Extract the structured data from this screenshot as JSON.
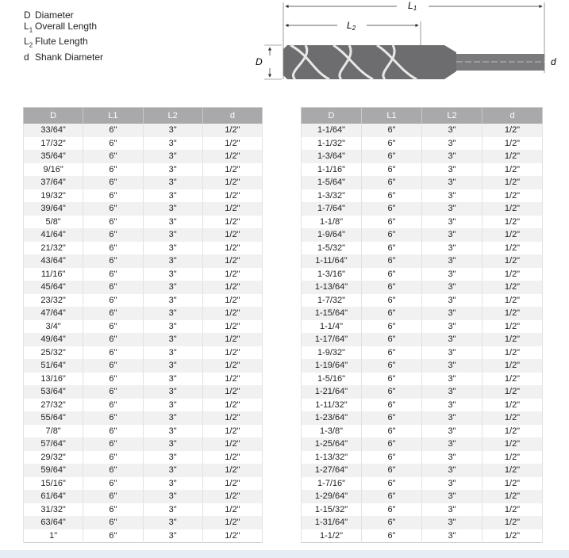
{
  "legend": [
    {
      "symbol": "D",
      "sub": "",
      "label": "Diameter"
    },
    {
      "symbol": "L",
      "sub": "1",
      "label": "Overall Length"
    },
    {
      "symbol": "L",
      "sub": "2",
      "label": "Flute Length"
    },
    {
      "symbol": "d",
      "sub": "",
      "label": "Shank Diameter"
    }
  ],
  "diagram": {
    "overall": {
      "symbol": "L",
      "sub": "1"
    },
    "flute": {
      "symbol": "L",
      "sub": "2"
    },
    "diameter": "D",
    "shank": "d"
  },
  "tables": [
    {
      "headers": [
        "D",
        "L1",
        "L2",
        "d"
      ],
      "rows": [
        [
          "33/64\"",
          "6\"",
          "3\"",
          "1/2\""
        ],
        [
          "17/32\"",
          "6\"",
          "3\"",
          "1/2\""
        ],
        [
          "35/64\"",
          "6\"",
          "3\"",
          "1/2\""
        ],
        [
          "9/16\"",
          "6\"",
          "3\"",
          "1/2\""
        ],
        [
          "37/64\"",
          "6\"",
          "3\"",
          "1/2\""
        ],
        [
          "19/32\"",
          "6\"",
          "3\"",
          "1/2\""
        ],
        [
          "39/64\"",
          "6\"",
          "3\"",
          "1/2\""
        ],
        [
          "5/8\"",
          "6\"",
          "3\"",
          "1/2\""
        ],
        [
          "41/64\"",
          "6\"",
          "3\"",
          "1/2\""
        ],
        [
          "21/32\"",
          "6\"",
          "3\"",
          "1/2\""
        ],
        [
          "43/64\"",
          "6\"",
          "3\"",
          "1/2\""
        ],
        [
          "11/16\"",
          "6\"",
          "3\"",
          "1/2\""
        ],
        [
          "45/64\"",
          "6\"",
          "3\"",
          "1/2\""
        ],
        [
          "23/32\"",
          "6\"",
          "3\"",
          "1/2\""
        ],
        [
          "47/64\"",
          "6\"",
          "3\"",
          "1/2\""
        ],
        [
          "3/4\"",
          "6\"",
          "3\"",
          "1/2\""
        ],
        [
          "49/64\"",
          "6\"",
          "3\"",
          "1/2\""
        ],
        [
          "25/32\"",
          "6\"",
          "3\"",
          "1/2\""
        ],
        [
          "51/64\"",
          "6\"",
          "3\"",
          "1/2\""
        ],
        [
          "13/16\"",
          "6\"",
          "3\"",
          "1/2\""
        ],
        [
          "53/64\"",
          "6\"",
          "3\"",
          "1/2\""
        ],
        [
          "27/32\"",
          "6\"",
          "3\"",
          "1/2\""
        ],
        [
          "55/64\"",
          "6\"",
          "3\"",
          "1/2\""
        ],
        [
          "7/8\"",
          "6\"",
          "3\"",
          "1/2\""
        ],
        [
          "57/64\"",
          "6\"",
          "3\"",
          "1/2\""
        ],
        [
          "29/32\"",
          "6\"",
          "3\"",
          "1/2\""
        ],
        [
          "59/64\"",
          "6\"",
          "3\"",
          "1/2\""
        ],
        [
          "15/16\"",
          "6\"",
          "3\"",
          "1/2\""
        ],
        [
          "61/64\"",
          "6\"",
          "3\"",
          "1/2\""
        ],
        [
          "31/32\"",
          "6\"",
          "3\"",
          "1/2\""
        ],
        [
          "63/64\"",
          "6\"",
          "3\"",
          "1/2\""
        ],
        [
          "1\"",
          "6\"",
          "3\"",
          "1/2\""
        ]
      ]
    },
    {
      "headers": [
        "D",
        "L1",
        "L2",
        "d"
      ],
      "rows": [
        [
          "1-1/64\"",
          "6\"",
          "3\"",
          "1/2\""
        ],
        [
          "1-1/32\"",
          "6\"",
          "3\"",
          "1/2\""
        ],
        [
          "1-3/64\"",
          "6\"",
          "3\"",
          "1/2\""
        ],
        [
          "1-1/16\"",
          "6\"",
          "3\"",
          "1/2\""
        ],
        [
          "1-5/64\"",
          "6\"",
          "3\"",
          "1/2\""
        ],
        [
          "1-3/32\"",
          "6\"",
          "3\"",
          "1/2\""
        ],
        [
          "1-7/64\"",
          "6\"",
          "3\"",
          "1/2\""
        ],
        [
          "1-1/8\"",
          "6\"",
          "3\"",
          "1/2\""
        ],
        [
          "1-9/64\"",
          "6\"",
          "3\"",
          "1/2\""
        ],
        [
          "1-5/32\"",
          "6\"",
          "3\"",
          "1/2\""
        ],
        [
          "1-11/64\"",
          "6\"",
          "3\"",
          "1/2\""
        ],
        [
          "1-3/16\"",
          "6\"",
          "3\"",
          "1/2\""
        ],
        [
          "1-13/64\"",
          "6\"",
          "3\"",
          "1/2\""
        ],
        [
          "1-7/32\"",
          "6\"",
          "3\"",
          "1/2\""
        ],
        [
          "1-15/64\"",
          "6\"",
          "3\"",
          "1/2\""
        ],
        [
          "1-1/4\"",
          "6\"",
          "3\"",
          "1/2\""
        ],
        [
          "1-17/64\"",
          "6\"",
          "3\"",
          "1/2\""
        ],
        [
          "1-9/32\"",
          "6\"",
          "3\"",
          "1/2\""
        ],
        [
          "1-19/64\"",
          "6\"",
          "3\"",
          "1/2\""
        ],
        [
          "1-5/16\"",
          "6\"",
          "3\"",
          "1/2\""
        ],
        [
          "1-21/64\"",
          "6\"",
          "3\"",
          "1/2\""
        ],
        [
          "1-11/32\"",
          "6\"",
          "3\"",
          "1/2\""
        ],
        [
          "1-23/64\"",
          "6\"",
          "3\"",
          "1/2\""
        ],
        [
          "1-3/8\"",
          "6\"",
          "3\"",
          "1/2\""
        ],
        [
          "1-25/64\"",
          "6\"",
          "3\"",
          "1/2\""
        ],
        [
          "1-13/32\"",
          "6\"",
          "3\"",
          "1/2\""
        ],
        [
          "1-27/64\"",
          "6\"",
          "3\"",
          "1/2\""
        ],
        [
          "1-7/16\"",
          "6\"",
          "3\"",
          "1/2\""
        ],
        [
          "1-29/64\"",
          "6\"",
          "3\"",
          "1/2\""
        ],
        [
          "1-15/32\"",
          "6\"",
          "3\"",
          "1/2\""
        ],
        [
          "1-31/64\"",
          "6\"",
          "3\"",
          "1/2\""
        ],
        [
          "1-1/2\"",
          "6\"",
          "3\"",
          "1/2\""
        ]
      ]
    }
  ]
}
